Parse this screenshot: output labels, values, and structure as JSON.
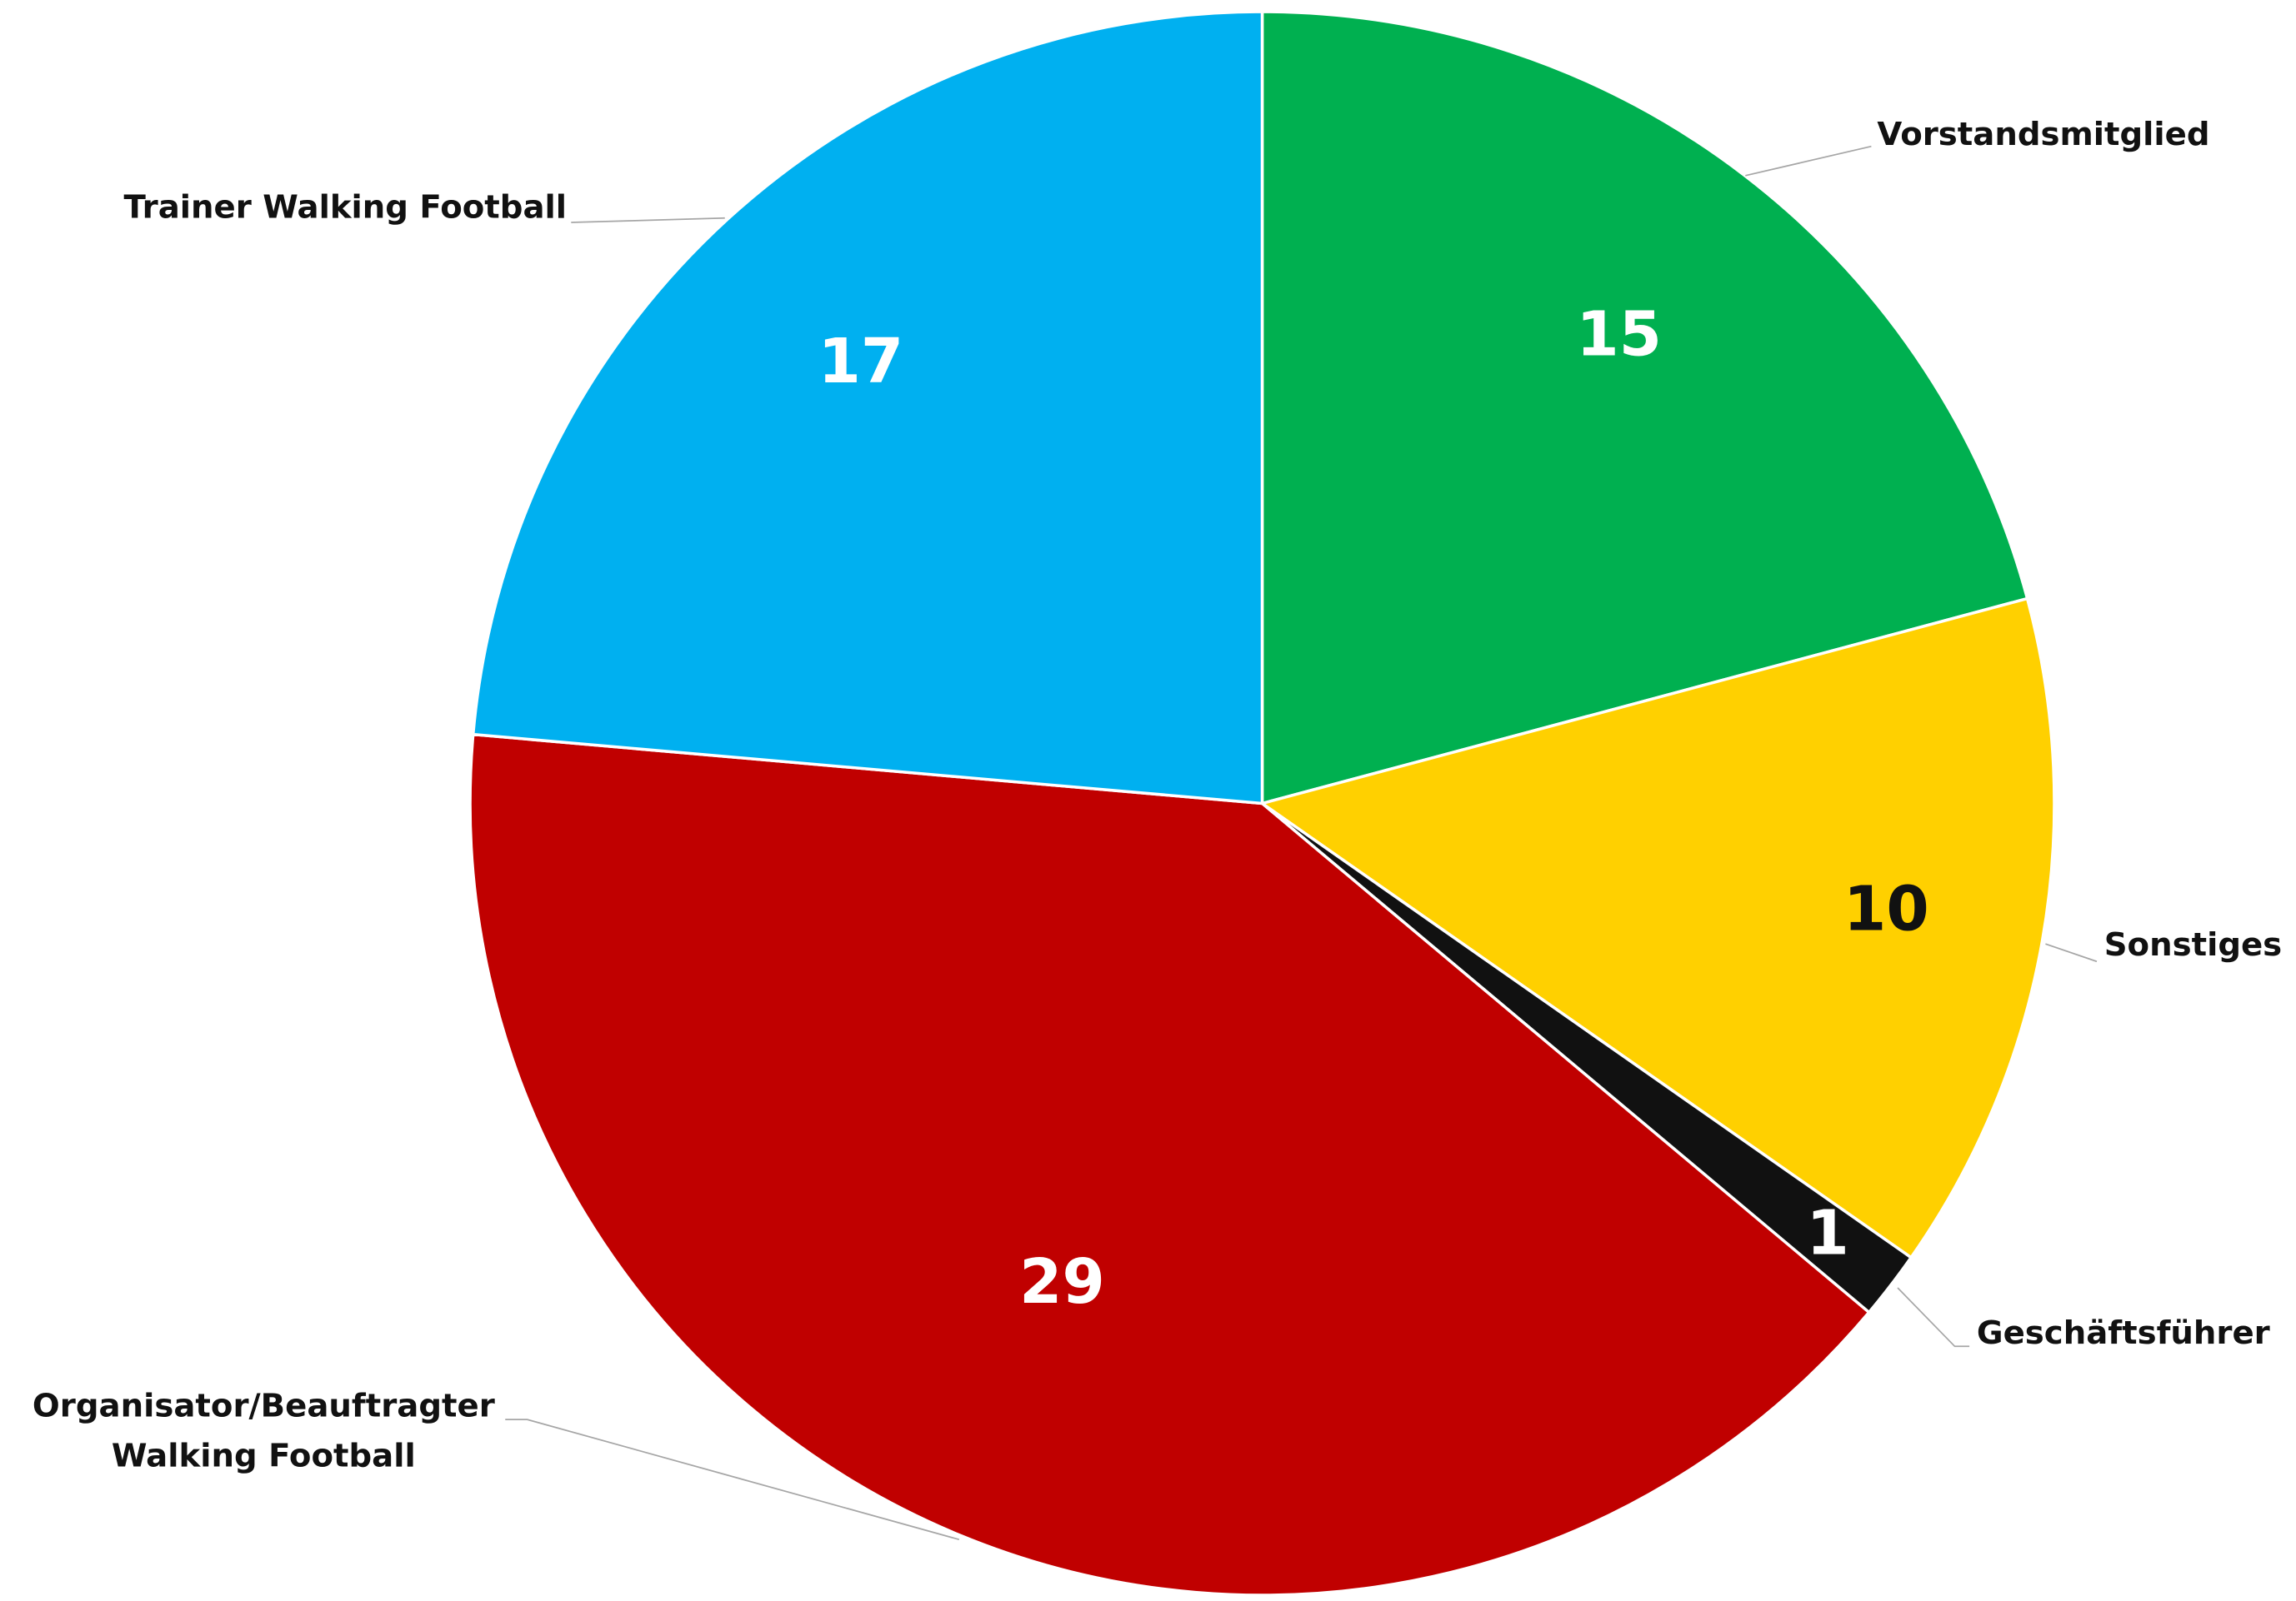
{
  "chart_data": {
    "type": "pie",
    "categories": [
      "Vorstandsmitglied",
      "Sonstiges",
      "Geschäftsführer",
      "Organisator/Beauftragter Walking Football",
      "Trainer Walking Football"
    ],
    "values": [
      15,
      10,
      1,
      29,
      17
    ],
    "colors": [
      "#00B050",
      "#FFD000",
      "#111111",
      "#C00000",
      "#00B0F0"
    ],
    "value_label_colors": [
      "#ffffff",
      "#111111",
      "#ffffff",
      "#ffffff",
      "#ffffff"
    ]
  }
}
